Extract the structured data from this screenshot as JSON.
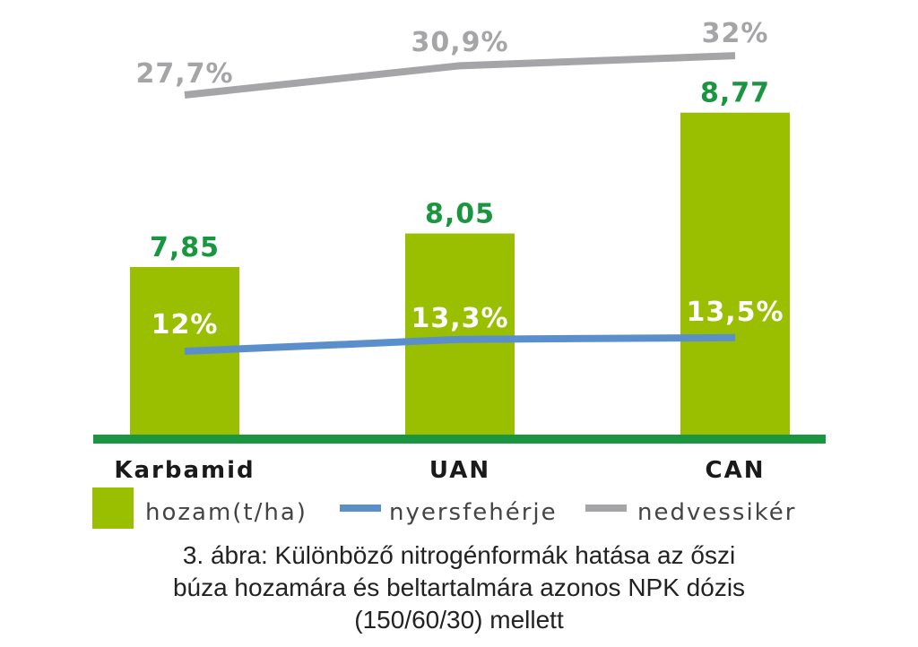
{
  "chart_data": {
    "type": "bar",
    "categories": [
      "Karbamid",
      "UAN",
      "CAN"
    ],
    "series": [
      {
        "name": "hozam(t/ha)",
        "kind": "bar",
        "color": "#99bf00",
        "values": [
          7.85,
          8.05,
          8.77
        ],
        "labels": [
          "7,85",
          "8,05",
          "8,77"
        ],
        "label_color": "#1a9640"
      },
      {
        "name": "nyersfehérje",
        "kind": "line",
        "color": "#5b8fcc",
        "values": [
          12,
          13.3,
          13.5
        ],
        "labels": [
          "12%",
          "13,3%",
          "13,5%"
        ],
        "label_color": "#ffffff"
      },
      {
        "name": "nedvessikér",
        "kind": "line",
        "color": "#a5a5a8",
        "values": [
          27.7,
          30.9,
          32
        ],
        "labels": [
          "27,7%",
          "30,9%",
          "32%"
        ],
        "label_color": "#a5a5a8"
      }
    ],
    "baseline_color": "#1a9640",
    "grid": false,
    "legend_position": "bottom"
  },
  "caption": {
    "line1": "3. ábra: Különböző nitrogénformák hatása az őszi",
    "line2": "búza hozamára és beltartalmára azonos NPK dózis",
    "line3": "(150/60/30) mellett"
  }
}
